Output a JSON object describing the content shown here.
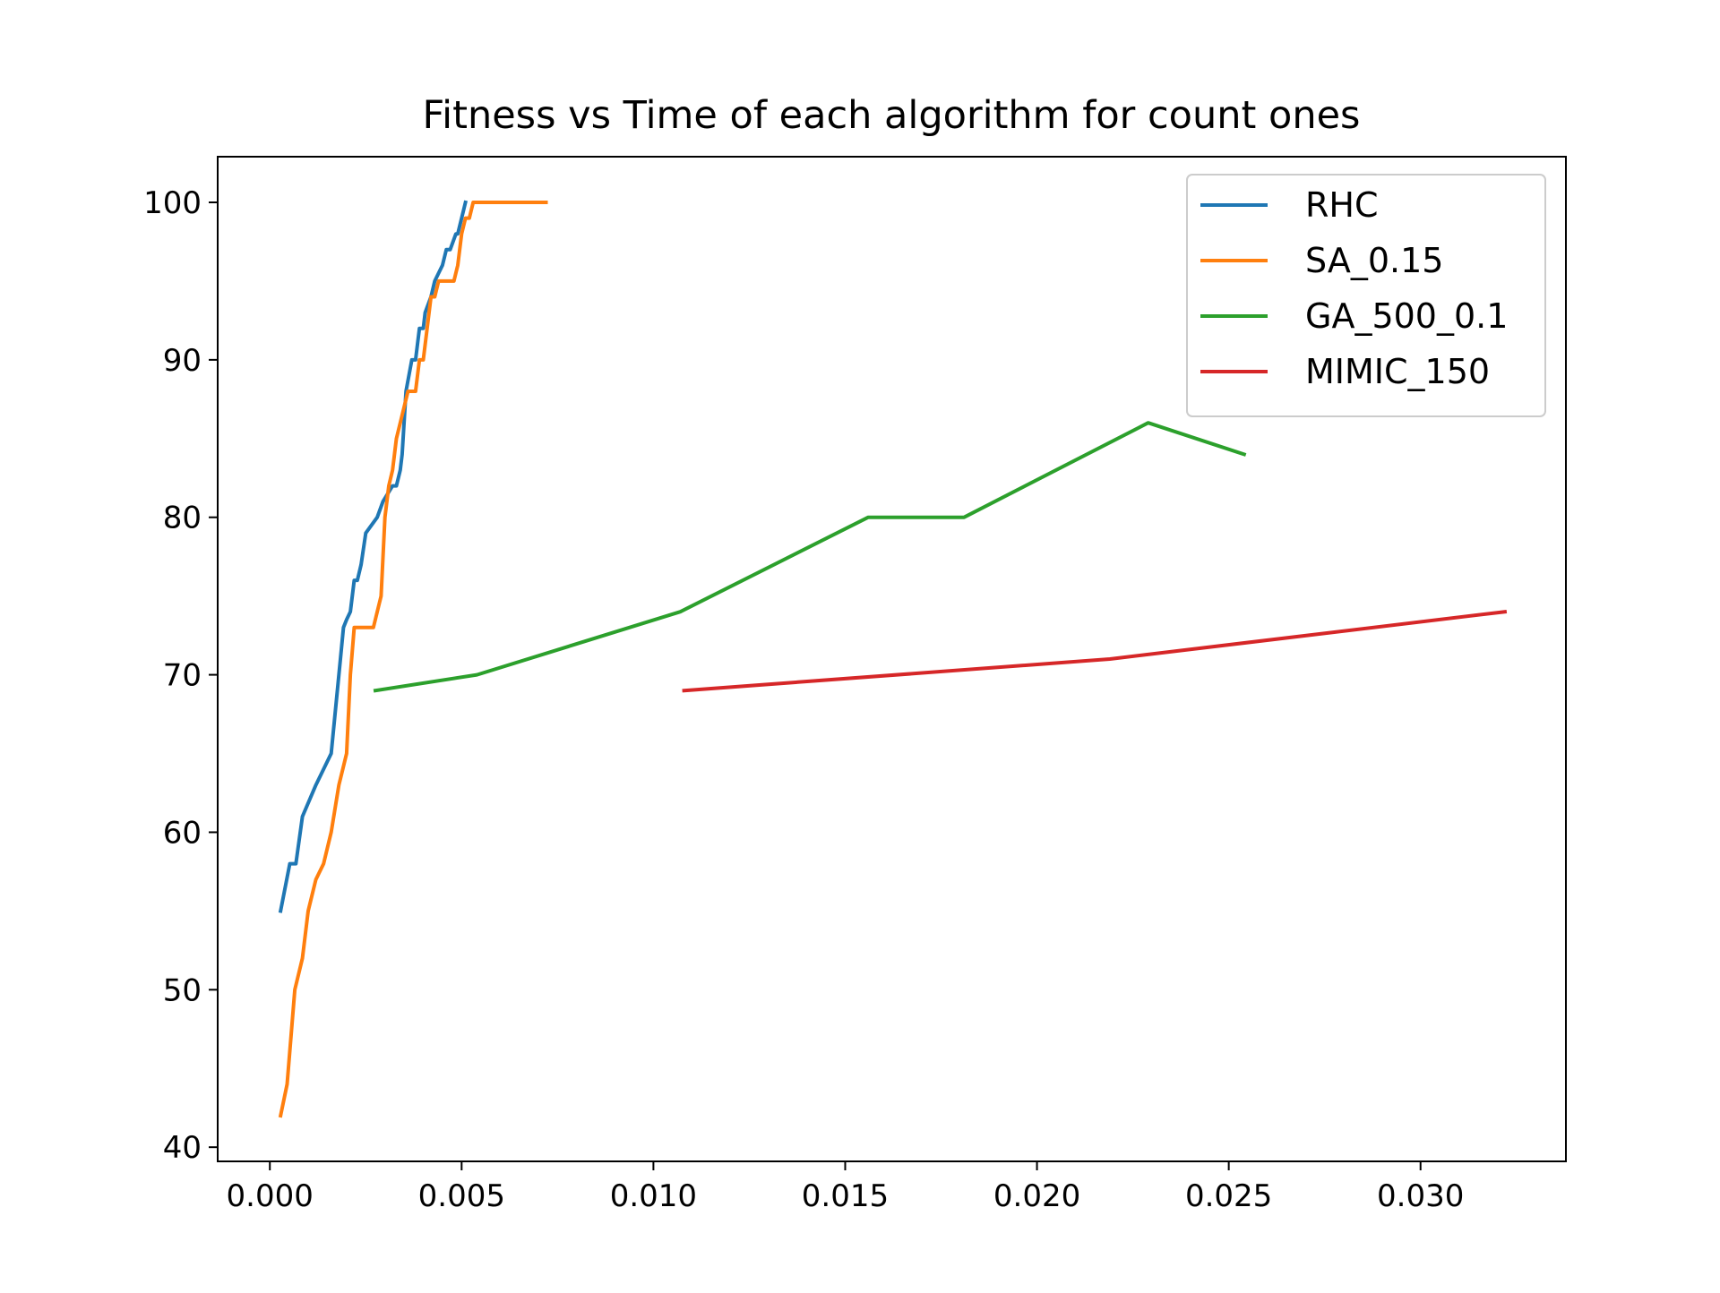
{
  "chart_data": {
    "type": "line",
    "title": "Fitness vs Time of each algorithm for count ones",
    "xlabel": "",
    "ylabel": "",
    "xlim": [
      -0.00136,
      0.03379
    ],
    "ylim": [
      39.1,
      102.9
    ],
    "x_ticks": [
      0.0,
      0.005,
      0.01,
      0.015,
      0.02,
      0.025,
      0.03
    ],
    "x_tick_labels": [
      "0.000",
      "0.005",
      "0.010",
      "0.015",
      "0.020",
      "0.025",
      "0.030"
    ],
    "y_ticks": [
      40,
      50,
      60,
      70,
      80,
      90,
      100
    ],
    "y_tick_labels": [
      "40",
      "50",
      "60",
      "70",
      "80",
      "90",
      "100"
    ],
    "grid": false,
    "legend_position": "upper right",
    "series": [
      {
        "name": "RHC",
        "color": "#1f77b4",
        "x": [
          0.00028,
          0.00052,
          0.00068,
          0.00085,
          0.0012,
          0.0016,
          0.0018,
          0.00192,
          0.002,
          0.0021,
          0.0022,
          0.00228,
          0.00238,
          0.0025,
          0.0028,
          0.00295,
          0.0032,
          0.0033,
          0.0034,
          0.00345,
          0.00355,
          0.0037,
          0.0038,
          0.0039,
          0.004,
          0.00405,
          0.0042,
          0.0043,
          0.0045,
          0.0046,
          0.0047,
          0.00485,
          0.0049,
          0.005,
          0.0051
        ],
        "y": [
          55,
          58,
          58,
          61,
          63,
          65,
          70,
          73,
          73.5,
          74,
          76,
          76,
          77,
          79,
          80,
          81,
          82,
          82,
          83,
          84,
          88,
          90,
          90,
          92,
          92,
          93,
          94,
          95,
          96,
          97,
          97,
          98,
          98,
          99,
          100
        ]
      },
      {
        "name": "SA_0.15",
        "color": "#ff7f0e",
        "x": [
          0.00028,
          0.00045,
          0.00065,
          0.00085,
          0.001,
          0.0012,
          0.0014,
          0.0016,
          0.0018,
          0.0019,
          0.002,
          0.0021,
          0.0022,
          0.0023,
          0.0027,
          0.0028,
          0.0029,
          0.003,
          0.0031,
          0.0032,
          0.0033,
          0.0034,
          0.0035,
          0.0036,
          0.0037,
          0.0038,
          0.0039,
          0.004,
          0.0041,
          0.0042,
          0.0043,
          0.0044,
          0.0048,
          0.0049,
          0.005,
          0.0051,
          0.0052,
          0.0053,
          0.0072
        ],
        "y": [
          42,
          44,
          50,
          52,
          55,
          57,
          58,
          60,
          63,
          64,
          65,
          70,
          73,
          73,
          73,
          74,
          75,
          80,
          82,
          83,
          85,
          86,
          87,
          88,
          88,
          88,
          90,
          90,
          92,
          94,
          94,
          95,
          95,
          96,
          98,
          99,
          99,
          100,
          100
        ]
      },
      {
        "name": "GA_500_0.1",
        "color": "#2ca02c",
        "x": [
          0.00275,
          0.0054,
          0.0107,
          0.0156,
          0.0181,
          0.0229,
          0.0254
        ],
        "y": [
          69,
          70,
          74,
          80,
          80,
          86,
          84
        ]
      },
      {
        "name": "MIMIC_150",
        "color": "#d62728",
        "x": [
          0.0108,
          0.0219,
          0.0322
        ],
        "y": [
          69,
          71,
          74
        ]
      }
    ]
  }
}
